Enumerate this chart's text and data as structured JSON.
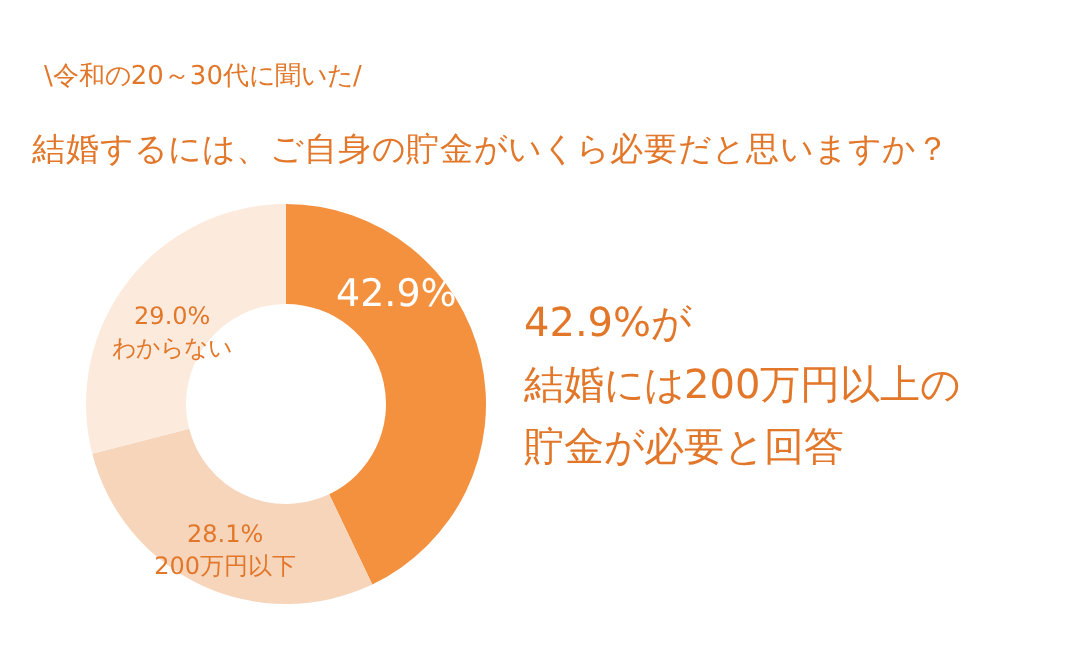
{
  "chart_data": {
    "type": "donut",
    "title": "\\令和の20～30代に聞いた/",
    "subtitle": "結婚するには、ご自身の貯金がいくら必要だと思いますか？",
    "categories": [
      null,
      "200万円以下",
      "わからない"
    ],
    "values": [
      42.9,
      28.1,
      29.0
    ],
    "value_labels": [
      "42.9%",
      "28.1%",
      "29.0%"
    ],
    "colors": [
      "#f4913f",
      "#f7d5bb",
      "#fceadd"
    ],
    "annotations": [
      "42.9%が",
      "結婚には200万円以上の",
      "貯金が必要と回答"
    ]
  }
}
